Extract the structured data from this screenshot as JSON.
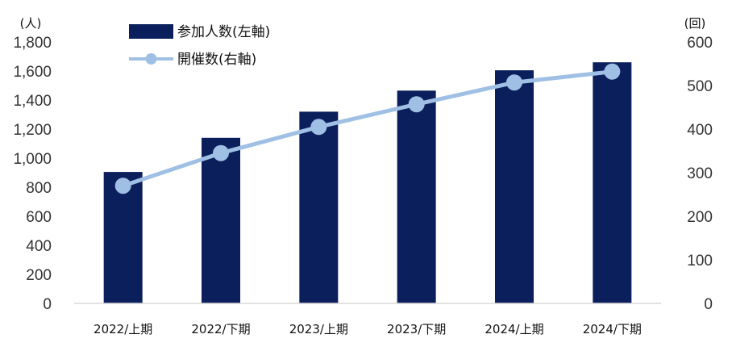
{
  "chart_data": {
    "type": "bar+line",
    "categories": [
      "2022/上期",
      "2022/下期",
      "2023/上期",
      "2023/下期",
      "2024/上期",
      "2024/下期"
    ],
    "series": [
      {
        "name": "参加人数(左軸)",
        "type": "bar",
        "axis": "left",
        "values": [
          905,
          1140,
          1320,
          1465,
          1605,
          1660
        ]
      },
      {
        "name": "開催数(右軸)",
        "type": "line",
        "axis": "right",
        "values": [
          270,
          345,
          405,
          457,
          507,
          532
        ]
      }
    ],
    "y_left": {
      "unit": "(人)",
      "min": 0,
      "max": 1800,
      "ticks": [
        "0",
        "200",
        "400",
        "600",
        "800",
        "1,000",
        "1,200",
        "1,400",
        "1,600",
        "1,800"
      ]
    },
    "y_right": {
      "unit": "(回)",
      "min": 0,
      "max": 600,
      "ticks": [
        "0",
        "100",
        "200",
        "300",
        "400",
        "500",
        "600"
      ]
    },
    "legend_position": "top-left",
    "grid": false,
    "colors": {
      "bar": "#0b1f5c",
      "line": "#9fc0e4",
      "axis": "#d9d9d9"
    }
  }
}
